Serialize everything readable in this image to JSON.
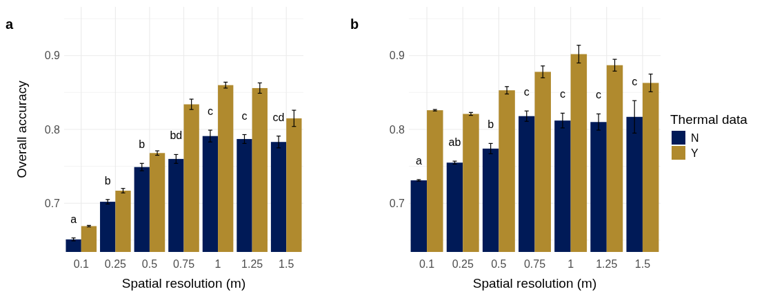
{
  "chart_data": [
    {
      "type": "bar",
      "title": "a",
      "xlabel": "Spatial resolution (m)",
      "ylabel": "Overall accuracy",
      "categories": [
        "0.1",
        "0.25",
        "0.5",
        "0.75",
        "1",
        "1.25",
        "1.5"
      ],
      "series": [
        {
          "color": "#001a57",
          "values": [
            0.651,
            0.702,
            0.749,
            0.76,
            0.791,
            0.787,
            0.783
          ],
          "errors": [
            0.002,
            0.003,
            0.005,
            0.006,
            0.008,
            0.006,
            0.008
          ]
        },
        {
          "color": "#b08a2e",
          "values": [
            0.669,
            0.717,
            0.768,
            0.834,
            0.86,
            0.856,
            0.815
          ],
          "errors": [
            0.001,
            0.003,
            0.003,
            0.007,
            0.004,
            0.007,
            0.011
          ]
        }
      ],
      "ylim": [
        0.634,
        0.966
      ],
      "yticks": [
        {
          "value": 0.65,
          "label": null
        },
        0.7,
        {
          "value": 0.75,
          "label": null
        },
        0.8,
        {
          "value": 0.85,
          "label": null
        },
        0.9,
        {
          "value": 0.95,
          "label": null
        }
      ],
      "grid": true,
      "legend": false,
      "annotations": [
        "a",
        "b",
        "b",
        "bd",
        "c",
        "c",
        "cd"
      ]
    },
    {
      "type": "bar",
      "title": "b",
      "xlabel": "Spatial resolution (m)",
      "legend_title": "Thermal data",
      "categories": [
        "0.1",
        "0.25",
        "0.5",
        "0.75",
        "1",
        "1.25",
        "1.5"
      ],
      "series": [
        {
          "name": "N",
          "color": "#001a57",
          "values": [
            0.731,
            0.755,
            0.774,
            0.818,
            0.812,
            0.81,
            0.817
          ],
          "errors": [
            0.001,
            0.002,
            0.007,
            0.007,
            0.01,
            0.011,
            0.022
          ]
        },
        {
          "name": "Y",
          "color": "#b08a2e",
          "values": [
            0.826,
            0.821,
            0.853,
            0.878,
            0.902,
            0.887,
            0.863
          ],
          "errors": [
            0.001,
            0.002,
            0.005,
            0.008,
            0.012,
            0.008,
            0.012
          ]
        }
      ],
      "ylim": [
        0.634,
        0.966
      ],
      "yticks": [
        {
          "value": 0.65,
          "label": null
        },
        0.7,
        {
          "value": 0.75,
          "label": null
        },
        0.8,
        {
          "value": 0.85,
          "label": null
        },
        0.9,
        {
          "value": 0.95,
          "label": null
        }
      ],
      "grid": true,
      "legend": "right",
      "annotations": [
        "a",
        "ab",
        "b",
        "c",
        "c",
        "c",
        "c"
      ]
    }
  ]
}
